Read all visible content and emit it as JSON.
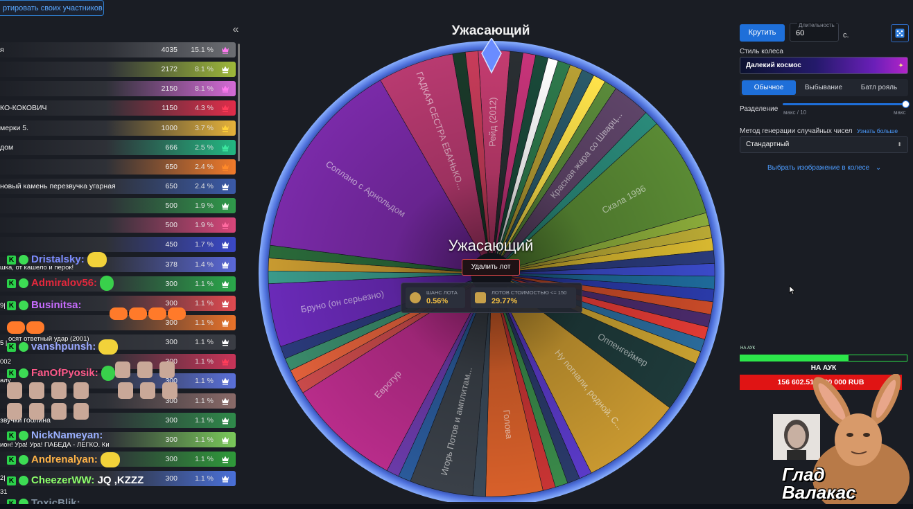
{
  "import_button": "ртировать своих участников",
  "collapse_icon": "«",
  "lots": [
    {
      "name": "я",
      "amount": "4035",
      "pct": "15.1 %",
      "color": "#6c6e73",
      "crown": "#ff7af0"
    },
    {
      "name": "",
      "amount": "2172",
      "pct": "8.1 %",
      "color": "#9eb83a",
      "crown": "#ffffff"
    },
    {
      "name": "",
      "amount": "2150",
      "pct": "8.1 %",
      "color": "#d46bd6",
      "crown": "#ff7af0"
    },
    {
      "name": "КО-КОКОВИЧ",
      "amount": "1150",
      "pct": "4.3 %",
      "color": "#e12d4a",
      "crown": "#ff3d5a"
    },
    {
      "name": "мерки 5.",
      "amount": "1000",
      "pct": "3.7 %",
      "color": "#e6b23a",
      "crown": "#ffd23a"
    },
    {
      "name": "дом",
      "amount": "666",
      "pct": "2.5 %",
      "color": "#23b882",
      "crown": "#3de8a0"
    },
    {
      "name": "",
      "amount": "650",
      "pct": "2.4 %",
      "color": "#f07a2a",
      "crown": "#ff8a2a"
    },
    {
      "name": "новый камень перезвучка угарная",
      "amount": "650",
      "pct": "2.4 %",
      "color": "#3a5aa8",
      "crown": "#ffffff"
    },
    {
      "name": "",
      "amount": "500",
      "pct": "1.9 %",
      "color": "#2f9a4a",
      "crown": "#ffffff"
    },
    {
      "name": "",
      "amount": "500",
      "pct": "1.9 %",
      "color": "#d8467a",
      "crown": "#ff6aa0"
    },
    {
      "name": "",
      "amount": "450",
      "pct": "1.7 %",
      "color": "#3a48c8",
      "crown": "#ffffff"
    },
    {
      "name": "",
      "amount": "378",
      "pct": "1.4 %",
      "color": "#5a68d8",
      "crown": "#ffffff"
    },
    {
      "name": "",
      "amount": "300",
      "pct": "1.1 %",
      "color": "#2aa84a",
      "crown": "#ffffff"
    },
    {
      "name": "",
      "amount": "300",
      "pct": "1.1 %",
      "color": "#e04a50",
      "crown": "#ffffff"
    },
    {
      "name": "",
      "amount": "300",
      "pct": "1.1 %",
      "color": "#e8722a",
      "crown": "#ffffff"
    },
    {
      "name": "",
      "amount": "300",
      "pct": "1.1 %",
      "color": "#3a3d44",
      "crown": "#ffffff"
    },
    {
      "name": "",
      "amount": "300",
      "pct": "1.1 %",
      "color": "#c83458",
      "crown": "#ff3d5a"
    },
    {
      "name": "",
      "amount": "300",
      "pct": "1.1 %",
      "color": "#5a70d8",
      "crown": "#ffffff"
    },
    {
      "name": "",
      "amount": "300",
      "pct": "1.1 %",
      "color": "#8a6a68",
      "crown": "#ffffff"
    },
    {
      "name": "звучки гоолина",
      "amount": "300",
      "pct": "1.1 %",
      "color": "#2f8a4a",
      "crown": "#ffffff"
    },
    {
      "name": "",
      "amount": "300",
      "pct": "1.1 %",
      "color": "#7ac85a",
      "crown": "#ffffff"
    },
    {
      "name": "",
      "amount": "300",
      "pct": "1.1 %",
      "color": "#2f9a3a",
      "crown": "#ffffff"
    },
    {
      "name": "",
      "amount": "300",
      "pct": "1.1 %",
      "color": "#4a70d8",
      "crown": "#ffffff"
    }
  ],
  "chat": [
    {
      "user": "Dristalsky:",
      "color": "#7c8cff",
      "msg": "",
      "sub": "шка, от кашело и перок!"
    },
    {
      "user": "Admiralov56:",
      "color": "#e3283c",
      "msg": "",
      "sub": ""
    },
    {
      "user": "Businitsa:",
      "color": "#c86cff",
      "msg": "",
      "sub": ""
    },
    {
      "user": "vanshpunsh:",
      "color": "#9aa8ff",
      "msg": "",
      "sub": "осят ответный удар (2001)"
    },
    {
      "user": "FanOfPyosik:",
      "color": "#ff5a8a",
      "msg": "",
      "sub": ""
    },
    {
      "user": "NickNameyan:",
      "color": "#9ab0ff",
      "msg": "",
      "sub": "ион! Ура! Ура! ПАБЕДА - ЛЕГКО. Ки"
    },
    {
      "user": "Andrenalyan:",
      "color": "#ffb347",
      "msg": "",
      "sub": ""
    },
    {
      "user": "CheezerWW:",
      "color": "#8cff6a",
      "msg": "JQ ,KZZZ",
      "sub": ""
    },
    {
      "user": "ToxicBlik:",
      "color": "#8090a0",
      "msg": "",
      "sub": ""
    }
  ],
  "chat_fragments": [
    "9|",
    "5 |",
    "002",
    "алу",
    "2|",
    "31"
  ],
  "wheel": {
    "title": "Ужасающий",
    "center_title": "Ужасающий",
    "delete_label": "Удалить лот",
    "labels": [
      "Рейд (2012)",
      "ГАДКАЯ СЕСТРА ЕБАНЬКО...",
      "Красная жара со Шварц...",
      "Скала 1996",
      "Соплано с Арнольдом",
      "Бруно (он серьезно)",
      "Оппенгеймер",
      "Ну погнали, родной. С...",
      "Евротур",
      "Игорь Потов и амплитам...",
      "Голова"
    ],
    "chance_label": "ШАНС ЛОТА",
    "chance_value": "0.56%",
    "lots_label": "ЛОТОВ СТОИМОСТЬЮ <= 150",
    "lots_value": "29.77%"
  },
  "chart_data": {
    "type": "pie",
    "title": "Ужасающий",
    "segments": [
      {
        "label": "Рейд (2012)",
        "value": 2.5,
        "color": "#c43c70"
      },
      {
        "label": "",
        "value": 1,
        "color": "#2a2f33"
      },
      {
        "label": "",
        "value": 1,
        "color": "#c8347a"
      },
      {
        "label": "",
        "value": 1,
        "color": "#1a4a3a"
      },
      {
        "label": "",
        "value": 0.8,
        "color": "#ffffff"
      },
      {
        "label": "",
        "value": 1,
        "color": "#2e7a4c"
      },
      {
        "label": "",
        "value": 1,
        "color": "#b8a034"
      },
      {
        "label": "",
        "value": 1,
        "color": "#2a5a6a"
      },
      {
        "label": "",
        "value": 1,
        "color": "#ffe34a"
      },
      {
        "label": "",
        "value": 1,
        "color": "#5a8a3a"
      },
      {
        "label": "Красная жара со Шварц...",
        "value": 3,
        "color": "#5e4468"
      },
      {
        "label": "",
        "value": 1.2,
        "color": "#2a8a7a"
      },
      {
        "label": "Скала 1996",
        "value": 8,
        "color": "#5a8a34"
      },
      {
        "label": "",
        "value": 1,
        "color": "#8aaa3a"
      },
      {
        "label": "",
        "value": 1,
        "color": "#b8a834"
      },
      {
        "label": "",
        "value": 1,
        "color": "#d8b830"
      },
      {
        "label": "",
        "value": 1,
        "color": "#2a3a7a"
      },
      {
        "label": "",
        "value": 1,
        "color": "#3a4ac8"
      },
      {
        "label": "",
        "value": 1,
        "color": "#1e6a9a"
      },
      {
        "label": "",
        "value": 1,
        "color": "#2a3aa8"
      },
      {
        "label": "",
        "value": 1,
        "color": "#c84a28"
      },
      {
        "label": "",
        "value": 1,
        "color": "#4a2a6a"
      },
      {
        "label": "",
        "value": 1,
        "color": "#e03a34"
      },
      {
        "label": "",
        "value": 1,
        "color": "#2a6a9a"
      },
      {
        "label": "",
        "value": 1,
        "color": "#c8a030"
      },
      {
        "label": "Оппенгеймер",
        "value": 4,
        "color": "#1e3a3a"
      },
      {
        "label": "Ну погнали, родной. С...",
        "value": 8,
        "color": "#c89830"
      },
      {
        "label": "",
        "value": 1,
        "color": "#5a3ac8"
      },
      {
        "label": "",
        "value": 1,
        "color": "#2a3a6a"
      },
      {
        "label": "",
        "value": 1,
        "color": "#3a8a4a"
      },
      {
        "label": "",
        "value": 1,
        "color": "#c83434"
      },
      {
        "label": "Голова",
        "value": 4.5,
        "color": "#d8602a"
      },
      {
        "label": "",
        "value": 1,
        "color": "#3a4a5a"
      },
      {
        "label": "Игорь Потов и амплитам...",
        "value": 5,
        "color": "#3a4048"
      },
      {
        "label": "",
        "value": 1,
        "color": "#2a5a9a"
      },
      {
        "label": "",
        "value": 1,
        "color": "#6a3aa8"
      },
      {
        "label": "Евротур",
        "value": 9,
        "color": "#b82c8a"
      },
      {
        "label": "",
        "value": 1,
        "color": "#c84a4a"
      },
      {
        "label": "",
        "value": 1,
        "color": "#e0603a"
      },
      {
        "label": "",
        "value": 1,
        "color": "#3a8a6a"
      },
      {
        "label": "",
        "value": 1,
        "color": "#2a3a7a"
      },
      {
        "label": "Бруно (он серьезно)",
        "value": 5,
        "color": "#6a2ab8"
      },
      {
        "label": "",
        "value": 1,
        "color": "#3a9a8a"
      },
      {
        "label": "",
        "value": 1,
        "color": "#c89a30"
      },
      {
        "label": "",
        "value": 1,
        "color": "#2a6a3a"
      },
      {
        "label": "Соплано с Арнольдом",
        "value": 16,
        "color": "#7a2aa8"
      },
      {
        "label": "ГАДКАЯ СЕСТРА ЕБАНЬКО...",
        "value": 6,
        "color": "#b83a70"
      },
      {
        "label": "",
        "value": 1,
        "color": "#1a3a2a"
      },
      {
        "label": "",
        "value": 1,
        "color": "#c83c5a"
      }
    ]
  },
  "controls": {
    "spin_label": "Крутить",
    "duration_label": "Длительность",
    "duration_value": "60",
    "duration_unit": "с.",
    "dice_icon": "dice-icon",
    "style_label": "Стиль колеса",
    "style_value": "Далекий космос",
    "modes": [
      "Обычное",
      "Выбывание",
      "Батл рояль"
    ],
    "active_mode": 0,
    "split_label": "Разделение",
    "split_min": "макс / 10",
    "split_max": "макс",
    "split_level": 1.0,
    "rng_label": "Метод генерации случайных чисел",
    "rng_link": "Узнать больше",
    "rng_value": "Стандартный",
    "image_link": "Выбрать изображение в колесе"
  },
  "auction": {
    "small_label": "НА АУК",
    "label": "НА АУК",
    "progress": 0.65,
    "total": "156 602.51 / 100 000 RUB"
  },
  "signature": [
    "Глад",
    "Валакас"
  ]
}
